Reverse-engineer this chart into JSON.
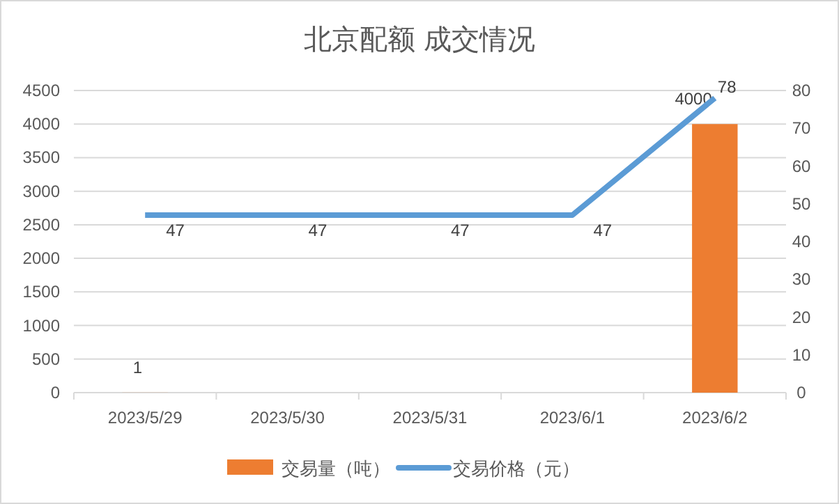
{
  "chart_data": {
    "type": "bar",
    "title": "北京配额 成交情况",
    "categories": [
      "2023/5/29",
      "2023/5/30",
      "2023/5/31",
      "2023/6/1",
      "2023/6/2"
    ],
    "series": [
      {
        "name": "交易量（吨）",
        "color": "#ed7d31",
        "values": [
          1,
          null,
          null,
          null,
          4000
        ],
        "value_labels": [
          "1",
          null,
          null,
          null,
          "4000"
        ]
      },
      {
        "name": "交易价格（元）",
        "type": "line",
        "axis": "y2",
        "color": "#5b9bd5",
        "values": [
          47,
          47,
          47,
          47,
          78
        ],
        "value_labels": [
          "47",
          "47",
          "47",
          "47",
          "78"
        ]
      }
    ],
    "ylim": [
      0,
      4500
    ],
    "yticks": [
      0,
      500,
      1000,
      1500,
      2000,
      2500,
      3000,
      3500,
      4000,
      4500
    ],
    "y2lim": [
      0,
      80
    ],
    "y2ticks": [
      0,
      10,
      20,
      30,
      40,
      50,
      60,
      70,
      80
    ],
    "grid": "y",
    "legend": "bottom"
  }
}
